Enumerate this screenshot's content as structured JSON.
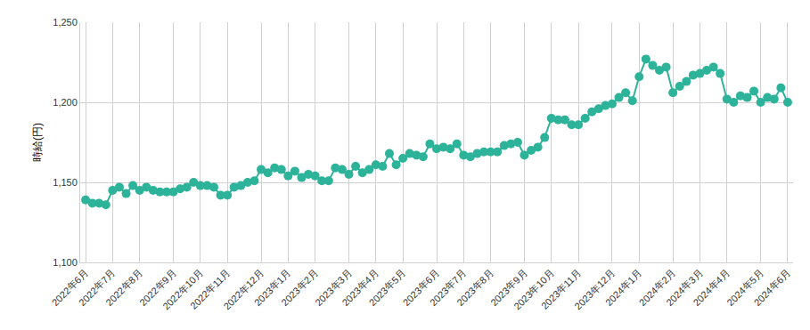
{
  "chart_data": {
    "type": "line",
    "y_label": "時給(円)",
    "categories": [
      "2022年6月",
      null,
      null,
      null,
      "2022年7月",
      null,
      null,
      null,
      "2022年8月",
      null,
      null,
      null,
      null,
      "2022年9月",
      null,
      null,
      null,
      "2022年10月",
      null,
      null,
      null,
      "2022年11月",
      null,
      null,
      null,
      null,
      "2022年12月",
      null,
      null,
      null,
      "2023年1月",
      null,
      null,
      null,
      "2023年2月",
      null,
      null,
      null,
      null,
      "2023年3月",
      null,
      null,
      null,
      "2023年4月",
      null,
      null,
      null,
      "2023年5月",
      null,
      null,
      null,
      null,
      "2023年6月",
      null,
      null,
      null,
      "2023年7月",
      null,
      null,
      null,
      "2023年8月",
      null,
      null,
      null,
      null,
      "2023年9月",
      null,
      null,
      null,
      "2023年10月",
      null,
      null,
      null,
      "2023年11月",
      null,
      null,
      null,
      null,
      "2023年12月",
      null,
      null,
      null,
      "2024年1月",
      null,
      null,
      null,
      null,
      "2024年2月",
      null,
      null,
      null,
      "2024年3月",
      null,
      null,
      null,
      "2024年4月",
      null,
      null,
      null,
      null,
      "2024年5月",
      null,
      null,
      null,
      "2024年6月"
    ],
    "values": [
      1139,
      1137,
      1137,
      1136,
      1145,
      1147,
      1143,
      1148,
      1145,
      1147,
      1145,
      1144,
      1144,
      1144,
      1146,
      1147,
      1150,
      1148,
      1148,
      1147,
      1142,
      1142,
      1147,
      1148,
      1150,
      1151,
      1158,
      1156,
      1159,
      1158,
      1154,
      1157,
      1153,
      1155,
      1154,
      1151,
      1151,
      1159,
      1158,
      1155,
      1160,
      1156,
      1158,
      1161,
      1160,
      1168,
      1161,
      1165,
      1168,
      1167,
      1166,
      1174,
      1171,
      1172,
      1171,
      1174,
      1167,
      1166,
      1168,
      1169,
      1169,
      1169,
      1173,
      1174,
      1175,
      1167,
      1170,
      1172,
      1178,
      1190,
      1189,
      1189,
      1186,
      1186,
      1190,
      1194,
      1196,
      1198,
      1199,
      1203,
      1206,
      1201,
      1216,
      1227,
      1223,
      1220,
      1222,
      1206,
      1210,
      1213,
      1217,
      1218,
      1220,
      1222,
      1218,
      1202,
      1200,
      1204,
      1203,
      1207,
      1200,
      1203,
      1202,
      1209,
      1200
    ],
    "color": "#2db39a",
    "marker": "circle",
    "ylim": [
      1100,
      1250
    ],
    "yticks": [
      {
        "value": 1100,
        "label": "1,100"
      },
      {
        "value": 1150,
        "label": "1,150"
      },
      {
        "value": 1200,
        "label": "1,200"
      },
      {
        "value": 1250,
        "label": "1,250"
      }
    ],
    "grid": true
  }
}
